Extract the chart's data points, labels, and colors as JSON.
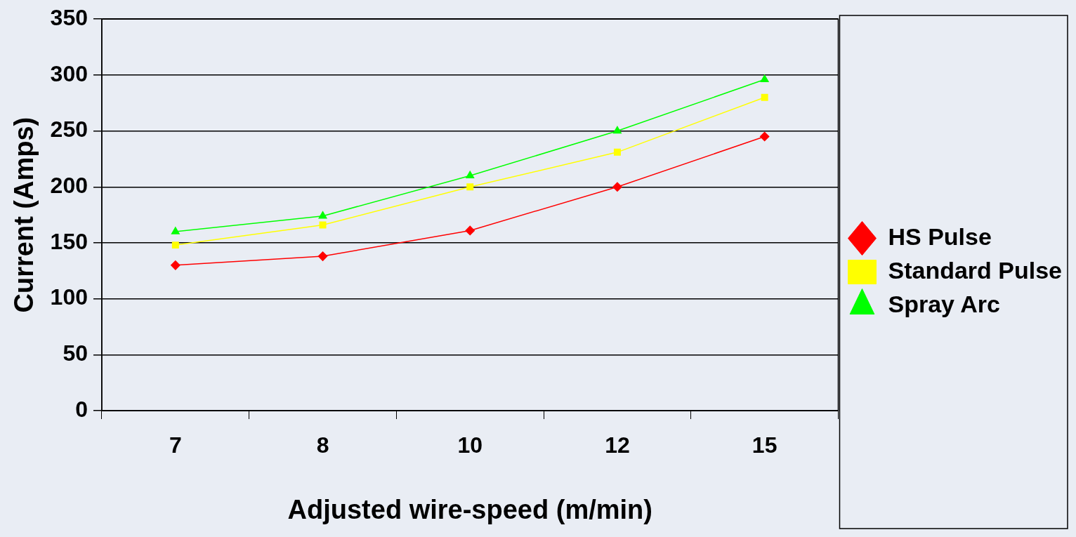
{
  "chart_data": {
    "type": "line",
    "xlabel": "Adjusted wire-speed (m/min)",
    "ylabel": "Current (Amps)",
    "categories": [
      "7",
      "8",
      "10",
      "12",
      "15"
    ],
    "series": [
      {
        "name": "HS Pulse",
        "color": "#ff0000",
        "marker": "diamond",
        "values": [
          130,
          138,
          161,
          200,
          245
        ]
      },
      {
        "name": "Standard Pulse",
        "color": "#ffff00",
        "marker": "square",
        "values": [
          148,
          166,
          200,
          231,
          280
        ]
      },
      {
        "name": "Spray Arc",
        "color": "#00ff00",
        "marker": "triangle",
        "values": [
          160,
          174,
          210,
          250,
          296
        ]
      }
    ],
    "ylim": [
      0,
      350
    ],
    "yticks": [
      0,
      50,
      100,
      150,
      200,
      250,
      300,
      350
    ],
    "grid": "y",
    "legend": "right",
    "line_style": "solid"
  }
}
